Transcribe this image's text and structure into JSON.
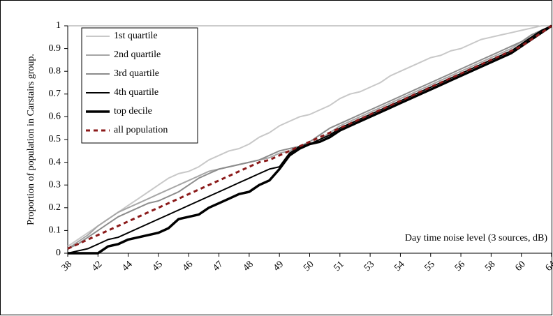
{
  "chart_data": {
    "type": "line",
    "y_label": "Proportion of population in Carstairs group.",
    "annotation": "Day time noise level (3 sources, dB)",
    "categories": [
      "38",
      null,
      null,
      "42",
      null,
      null,
      "44",
      null,
      null,
      "45",
      null,
      null,
      "46",
      null,
      null,
      "47",
      null,
      null,
      "48",
      null,
      null,
      "49",
      null,
      null,
      "50",
      null,
      null,
      "51",
      null,
      null,
      "53",
      null,
      null,
      "54",
      null,
      null,
      "55",
      null,
      null,
      "56",
      null,
      null,
      "58",
      null,
      null,
      "60",
      null,
      null,
      "64"
    ],
    "ylim": [
      0,
      1
    ],
    "yticks": [
      0,
      0.1,
      0.2,
      0.3,
      0.4,
      0.5,
      0.6,
      0.7,
      0.8,
      0.9,
      1
    ],
    "legend": "top-left",
    "series": [
      {
        "name": "1st quartile",
        "color": "#c8c8c8",
        "line_width": 2,
        "values": [
          0.03,
          0.06,
          0.09,
          0.12,
          0.15,
          0.18,
          0.21,
          0.24,
          0.27,
          0.3,
          0.33,
          0.35,
          0.36,
          0.38,
          0.41,
          0.43,
          0.45,
          0.46,
          0.48,
          0.51,
          0.53,
          0.56,
          0.58,
          0.6,
          0.61,
          0.63,
          0.65,
          0.68,
          0.7,
          0.71,
          0.73,
          0.75,
          0.78,
          0.8,
          0.82,
          0.84,
          0.86,
          0.87,
          0.89,
          0.9,
          0.92,
          0.94,
          0.95,
          0.96,
          0.97,
          0.98,
          0.99,
          1.0,
          1.0
        ]
      },
      {
        "name": "2nd quartile",
        "color": "#a6a6a6",
        "line_width": 2,
        "values": [
          0.02,
          0.05,
          0.08,
          0.12,
          0.15,
          0.18,
          0.2,
          0.22,
          0.24,
          0.26,
          0.28,
          0.3,
          0.32,
          0.34,
          0.36,
          0.37,
          0.38,
          0.39,
          0.4,
          0.41,
          0.42,
          0.44,
          0.45,
          0.47,
          0.48,
          0.5,
          0.53,
          0.56,
          0.58,
          0.6,
          0.62,
          0.64,
          0.66,
          0.68,
          0.7,
          0.72,
          0.74,
          0.76,
          0.78,
          0.8,
          0.82,
          0.84,
          0.86,
          0.88,
          0.9,
          0.93,
          0.95,
          0.98,
          1.0
        ]
      },
      {
        "name": "3rd quartile",
        "color": "#8c8c8c",
        "line_width": 2,
        "values": [
          0.02,
          0.04,
          0.07,
          0.1,
          0.13,
          0.16,
          0.18,
          0.2,
          0.22,
          0.23,
          0.25,
          0.27,
          0.3,
          0.33,
          0.35,
          0.37,
          0.38,
          0.39,
          0.4,
          0.41,
          0.43,
          0.45,
          0.46,
          0.47,
          0.49,
          0.52,
          0.55,
          0.57,
          0.59,
          0.61,
          0.63,
          0.65,
          0.67,
          0.69,
          0.71,
          0.73,
          0.75,
          0.77,
          0.79,
          0.81,
          0.83,
          0.85,
          0.87,
          0.89,
          0.91,
          0.93,
          0.96,
          0.98,
          1.0
        ]
      },
      {
        "name": "4th quartile",
        "color": "#000000",
        "line_width": 2,
        "values": [
          0.0,
          0.01,
          0.02,
          0.04,
          0.06,
          0.07,
          0.09,
          0.11,
          0.13,
          0.15,
          0.17,
          0.19,
          0.21,
          0.23,
          0.25,
          0.27,
          0.29,
          0.31,
          0.33,
          0.35,
          0.37,
          0.38,
          0.44,
          0.47,
          0.48,
          0.5,
          0.52,
          0.55,
          0.57,
          0.59,
          0.61,
          0.63,
          0.65,
          0.67,
          0.69,
          0.71,
          0.73,
          0.75,
          0.77,
          0.79,
          0.81,
          0.83,
          0.85,
          0.87,
          0.89,
          0.92,
          0.95,
          0.98,
          1.0
        ]
      },
      {
        "name": "top decile",
        "color": "#000000",
        "line_width": 3.5,
        "values": [
          0.0,
          0.0,
          0.0,
          0.0,
          0.03,
          0.04,
          0.06,
          0.07,
          0.08,
          0.09,
          0.11,
          0.15,
          0.16,
          0.17,
          0.2,
          0.22,
          0.24,
          0.26,
          0.27,
          0.3,
          0.32,
          0.37,
          0.43,
          0.46,
          0.48,
          0.49,
          0.51,
          0.54,
          0.56,
          0.58,
          0.6,
          0.62,
          0.64,
          0.66,
          0.68,
          0.7,
          0.72,
          0.74,
          0.76,
          0.78,
          0.8,
          0.82,
          0.84,
          0.86,
          0.88,
          0.91,
          0.94,
          0.97,
          1.0
        ]
      },
      {
        "name": "all population",
        "color": "#8b1a1a",
        "line_width": 3,
        "dashed": true,
        "values": [
          0.02,
          0.04,
          0.06,
          0.08,
          0.1,
          0.12,
          0.14,
          0.16,
          0.18,
          0.2,
          0.22,
          0.24,
          0.26,
          0.28,
          0.3,
          0.32,
          0.34,
          0.36,
          0.38,
          0.4,
          0.41,
          0.43,
          0.45,
          0.47,
          0.49,
          0.51,
          0.53,
          0.55,
          0.57,
          0.59,
          0.61,
          0.63,
          0.65,
          0.67,
          0.69,
          0.71,
          0.73,
          0.75,
          0.77,
          0.79,
          0.81,
          0.83,
          0.85,
          0.87,
          0.89,
          0.91,
          0.94,
          0.97,
          1.0
        ]
      }
    ]
  }
}
